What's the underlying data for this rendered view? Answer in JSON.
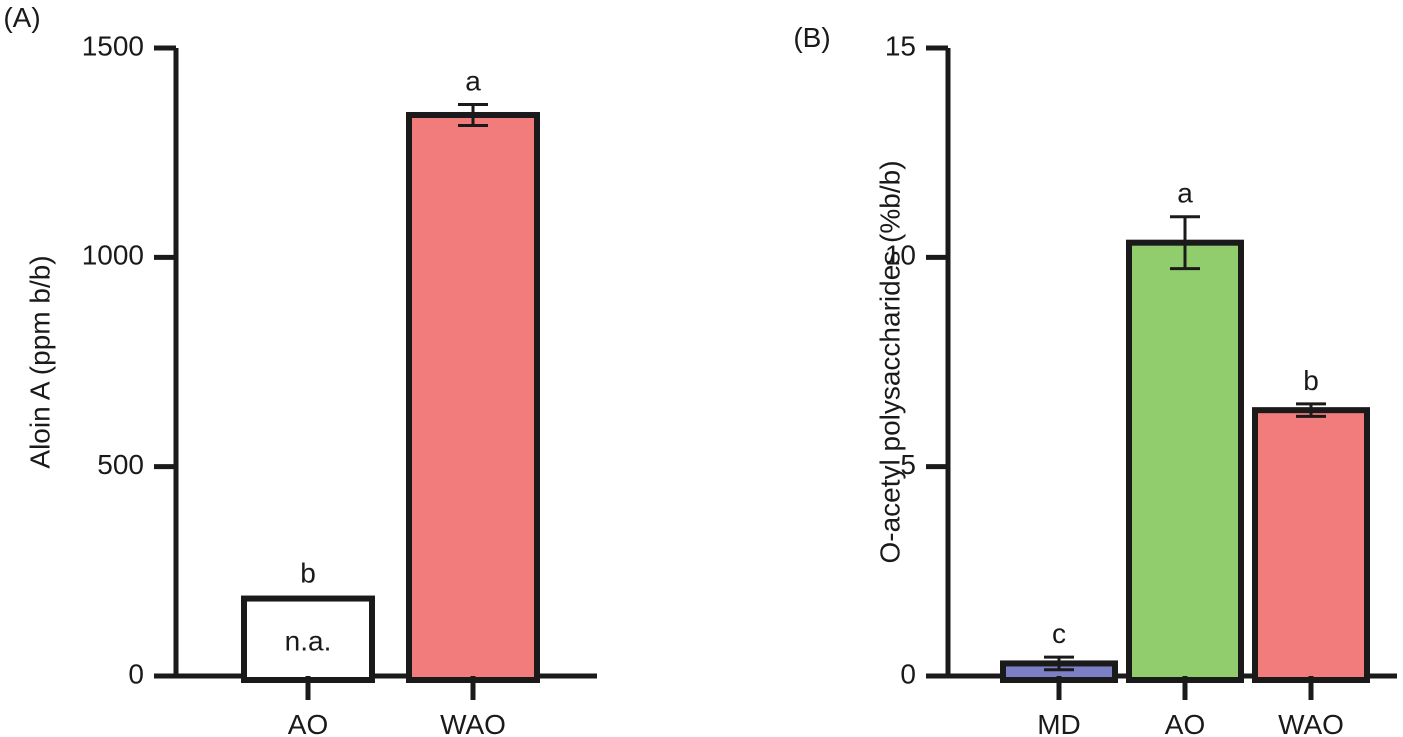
{
  "chart_data": [
    {
      "type": "bar",
      "panel_label": "(A)",
      "title": "",
      "xlabel": "",
      "ylabel": "Aloin A (ppm b/b)",
      "ylim": [
        0,
        1500
      ],
      "yticks": [
        0,
        500,
        1000,
        1500
      ],
      "ytick_labels": [
        "0",
        "500",
        "1000",
        "1500"
      ],
      "grid": false,
      "categories": [
        "AO",
        "WAO"
      ],
      "bars": [
        {
          "category": "AO",
          "value": 185,
          "error": 0,
          "sig": "b",
          "inner_text": "n.a.",
          "color": "#ffffff"
        },
        {
          "category": "WAO",
          "value": 1340,
          "error": 25,
          "sig": "a",
          "inner_text": "",
          "color": "#f27b7b"
        }
      ]
    },
    {
      "type": "bar",
      "panel_label": "(B)",
      "title": "",
      "xlabel": "",
      "ylabel": "O-acetyl polysaccharides (%b/b)",
      "ylim": [
        0,
        15
      ],
      "yticks": [
        0,
        5,
        10,
        15
      ],
      "ytick_labels": [
        "0",
        "5",
        "10",
        "15"
      ],
      "grid": false,
      "categories": [
        "MD",
        "AO",
        "WAO"
      ],
      "bars": [
        {
          "category": "MD",
          "value": 0.3,
          "error": 0.15,
          "sig": "c",
          "inner_text": "",
          "color": "#7b7fc4"
        },
        {
          "category": "AO",
          "value": 10.35,
          "error": 0.62,
          "sig": "a",
          "inner_text": "",
          "color": "#92cd6d"
        },
        {
          "category": "WAO",
          "value": 6.35,
          "error": 0.15,
          "sig": "b",
          "inner_text": "",
          "color": "#f27b7b"
        }
      ]
    }
  ]
}
